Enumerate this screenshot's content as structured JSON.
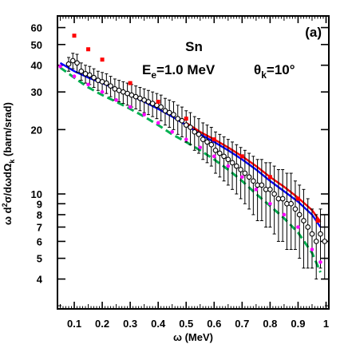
{
  "chart_data": {
    "type": "scatter",
    "panel_label": "(a)",
    "annotations": {
      "target": "Sn",
      "energy_main": "E",
      "energy_sub": "e",
      "energy_value": "=1.0 MeV",
      "angle_main": "θ",
      "angle_sub": "k",
      "angle_value": "=10°"
    },
    "xlabel": "ω  (MeV)",
    "ylabel": {
      "p1": "ω d",
      "sup": "2",
      "p2": "σ/dωdΩ",
      "sub": "k",
      "p3": " (barn/srad)"
    },
    "xlim": [
      0.04,
      1.01
    ],
    "ylim": [
      2.9,
      68
    ],
    "yscale": "log",
    "x_ticks": [
      0.1,
      0.2,
      0.3,
      0.4,
      0.5,
      0.6,
      0.7,
      0.8,
      0.9,
      1.0
    ],
    "x_tick_labels": [
      "0.1",
      "0.2",
      "0.3",
      "0.4",
      "0.5",
      "0.6",
      "0.7",
      "0.8",
      "0.9",
      "1"
    ],
    "y_ticks": [
      4,
      5,
      6,
      7,
      8,
      9,
      10,
      20,
      30,
      40,
      50,
      60
    ],
    "y_tick_labels": [
      "4",
      "5",
      "6",
      "7",
      "8",
      "9",
      "10",
      "20",
      "30",
      "40",
      "50",
      "60"
    ],
    "series": [
      {
        "style": "open-circles-errorbars",
        "color": "#000000",
        "points": [
          [
            0.08,
            40.5,
            3.0
          ],
          [
            0.095,
            42.0,
            3.5
          ],
          [
            0.11,
            41.0,
            4.0
          ],
          [
            0.125,
            37.5,
            3.5
          ],
          [
            0.14,
            36.5,
            3.5
          ],
          [
            0.155,
            36.0,
            3.5
          ],
          [
            0.17,
            35.0,
            3.5
          ],
          [
            0.185,
            34.0,
            3.5
          ],
          [
            0.2,
            33.5,
            3.5
          ],
          [
            0.215,
            33.0,
            3.5
          ],
          [
            0.23,
            32.0,
            3.5
          ],
          [
            0.245,
            31.0,
            3.5
          ],
          [
            0.26,
            30.5,
            3.5
          ],
          [
            0.275,
            30.0,
            3.5
          ],
          [
            0.29,
            29.5,
            3.5
          ],
          [
            0.305,
            29.0,
            3.5
          ],
          [
            0.32,
            28.5,
            3.5
          ],
          [
            0.335,
            28.0,
            3.5
          ],
          [
            0.35,
            27.5,
            3.5
          ],
          [
            0.365,
            27.0,
            3.5
          ],
          [
            0.38,
            26.5,
            3.5
          ],
          [
            0.395,
            26.0,
            3.5
          ],
          [
            0.41,
            25.5,
            3.5
          ],
          [
            0.425,
            24.5,
            3.5
          ],
          [
            0.44,
            24.0,
            3.5
          ],
          [
            0.455,
            23.5,
            3.5
          ],
          [
            0.47,
            22.5,
            3.5
          ],
          [
            0.485,
            22.0,
            3.5
          ],
          [
            0.5,
            21.0,
            3.5
          ],
          [
            0.515,
            20.5,
            3.5
          ],
          [
            0.53,
            19.5,
            3.5
          ],
          [
            0.545,
            19.0,
            3.5
          ],
          [
            0.56,
            18.0,
            3.5
          ],
          [
            0.575,
            17.5,
            3.5
          ],
          [
            0.59,
            17.0,
            3.5
          ],
          [
            0.605,
            16.0,
            3.5
          ],
          [
            0.62,
            15.5,
            3.5
          ],
          [
            0.635,
            15.0,
            3.5
          ],
          [
            0.65,
            14.5,
            3.5
          ],
          [
            0.665,
            14.0,
            3.5
          ],
          [
            0.68,
            13.5,
            3.5
          ],
          [
            0.695,
            13.0,
            3.5
          ],
          [
            0.71,
            12.5,
            3.5
          ],
          [
            0.725,
            12.0,
            3.5
          ],
          [
            0.74,
            11.5,
            3.5
          ],
          [
            0.755,
            11.0,
            3.5
          ],
          [
            0.77,
            11.0,
            3.5
          ],
          [
            0.785,
            10.5,
            3.5
          ],
          [
            0.8,
            10.5,
            3.5
          ],
          [
            0.815,
            10.0,
            3.5
          ],
          [
            0.83,
            9.5,
            3.5
          ],
          [
            0.845,
            9.5,
            3.5
          ],
          [
            0.86,
            9.0,
            3.5
          ],
          [
            0.875,
            9.0,
            3.5
          ],
          [
            0.89,
            8.5,
            3.0
          ],
          [
            0.905,
            8.0,
            3.0
          ],
          [
            0.92,
            7.5,
            3.0
          ],
          [
            0.935,
            7.0,
            2.5
          ],
          [
            0.95,
            6.5,
            2.0
          ],
          [
            0.965,
            6.0,
            2.0
          ],
          [
            0.98,
            6.5,
            2.0
          ],
          [
            0.995,
            6.0,
            2.0
          ]
        ]
      },
      {
        "style": "red-squares",
        "color": "#ff0000",
        "points": [
          [
            0.1,
            55.0
          ],
          [
            0.15,
            47.5
          ],
          [
            0.2,
            42.5
          ],
          [
            0.3,
            33.0
          ],
          [
            0.4,
            27.0
          ],
          [
            0.5,
            22.5
          ],
          [
            0.6,
            18.0
          ],
          [
            0.7,
            15.0
          ],
          [
            0.8,
            12.0
          ],
          [
            0.9,
            9.5
          ],
          [
            0.97,
            7.5
          ]
        ]
      },
      {
        "style": "magenta-dots",
        "color": "#ff00ff",
        "points": [
          [
            0.05,
            39.5
          ],
          [
            0.1,
            35.5
          ],
          [
            0.15,
            32.5
          ],
          [
            0.2,
            30.0
          ],
          [
            0.25,
            27.5
          ],
          [
            0.3,
            25.5
          ],
          [
            0.35,
            23.5
          ],
          [
            0.4,
            21.5
          ],
          [
            0.45,
            19.5
          ],
          [
            0.5,
            18.0
          ],
          [
            0.55,
            16.5
          ],
          [
            0.6,
            15.0
          ],
          [
            0.65,
            13.5
          ],
          [
            0.7,
            12.0
          ],
          [
            0.75,
            10.5
          ],
          [
            0.8,
            9.0
          ],
          [
            0.85,
            8.0
          ],
          [
            0.9,
            7.0
          ],
          [
            0.95,
            5.5
          ],
          [
            0.98,
            4.8
          ]
        ]
      },
      {
        "style": "green-dashed-line",
        "color": "#00b050",
        "points": [
          [
            0.05,
            39.0
          ],
          [
            0.1,
            35.0
          ],
          [
            0.15,
            31.5
          ],
          [
            0.2,
            29.0
          ],
          [
            0.25,
            27.0
          ],
          [
            0.3,
            25.0
          ],
          [
            0.35,
            23.0
          ],
          [
            0.4,
            21.0
          ],
          [
            0.45,
            19.0
          ],
          [
            0.5,
            17.5
          ],
          [
            0.55,
            16.0
          ],
          [
            0.6,
            14.5
          ],
          [
            0.65,
            13.0
          ],
          [
            0.7,
            11.5
          ],
          [
            0.75,
            10.0
          ],
          [
            0.8,
            8.8
          ],
          [
            0.85,
            7.7
          ],
          [
            0.9,
            6.6
          ],
          [
            0.95,
            5.3
          ],
          [
            0.98,
            4.3
          ]
        ]
      },
      {
        "style": "blue-solid-line",
        "color": "#0000ff",
        "points": [
          [
            0.05,
            41.0
          ],
          [
            0.1,
            37.5
          ],
          [
            0.15,
            35.0
          ],
          [
            0.2,
            33.0
          ],
          [
            0.25,
            31.0
          ],
          [
            0.3,
            29.0
          ],
          [
            0.35,
            27.0
          ],
          [
            0.4,
            25.0
          ],
          [
            0.45,
            23.0
          ],
          [
            0.5,
            21.0
          ],
          [
            0.55,
            19.0
          ],
          [
            0.6,
            17.5
          ],
          [
            0.65,
            16.0
          ],
          [
            0.7,
            14.5
          ],
          [
            0.75,
            13.0
          ],
          [
            0.8,
            11.5
          ],
          [
            0.85,
            10.3
          ],
          [
            0.9,
            9.2
          ],
          [
            0.95,
            8.0
          ],
          [
            0.98,
            7.0
          ]
        ]
      },
      {
        "style": "red-solid-line",
        "color": "#ff0000",
        "points": [
          [
            0.5,
            21.5
          ],
          [
            0.55,
            19.5
          ],
          [
            0.6,
            18.0
          ],
          [
            0.65,
            16.5
          ],
          [
            0.7,
            15.0
          ],
          [
            0.75,
            13.5
          ],
          [
            0.8,
            12.0
          ],
          [
            0.85,
            10.8
          ],
          [
            0.9,
            9.6
          ],
          [
            0.95,
            8.4
          ],
          [
            0.98,
            7.4
          ]
        ]
      }
    ]
  }
}
